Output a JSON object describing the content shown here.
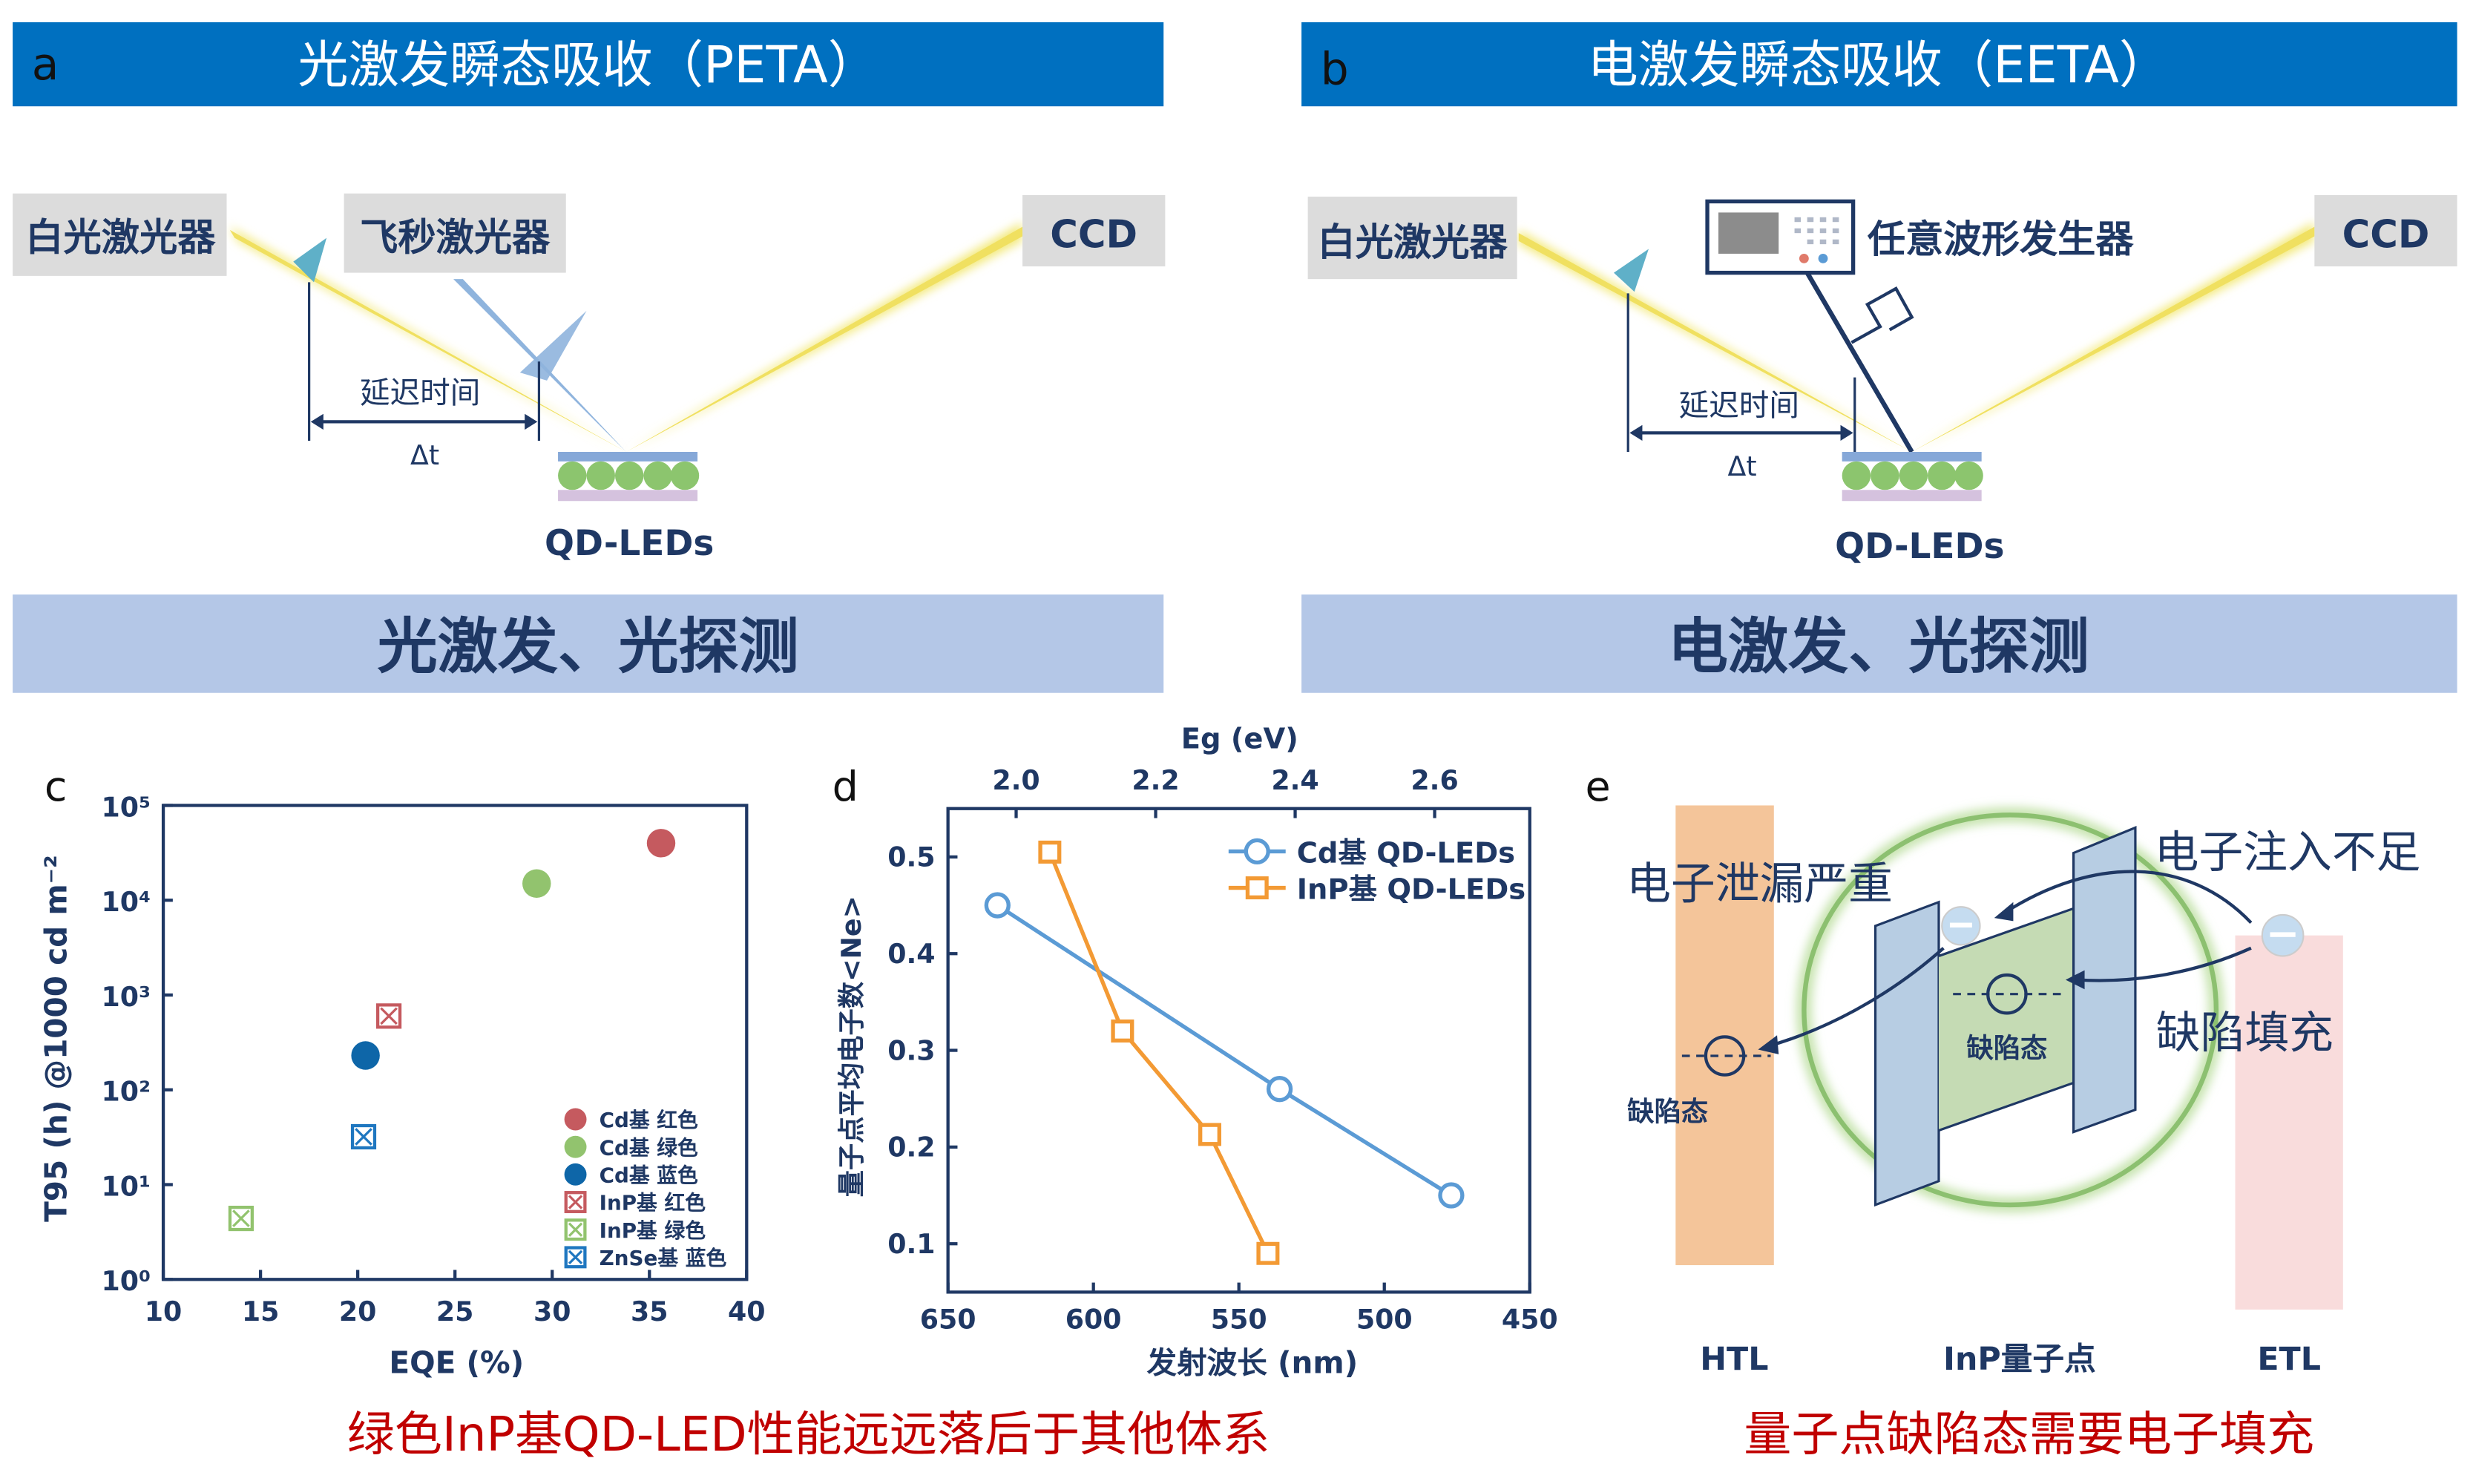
{
  "colors": {
    "header": "#0070c0",
    "banner": "#b4c7e7",
    "text": "#1f3864",
    "caption": "#c00000",
    "beam_yellow": "#f3e97a",
    "beam_blue": "#8fb4dd",
    "htl": "#f4c59a",
    "etl": "#f9dcdc",
    "well": "#c5dbb4",
    "barrier": "#b7cde3",
    "ring": "#8cc070"
  },
  "panel_a": {
    "letter": "a",
    "title": "光激发瞬态吸收（PETA）",
    "white_laser": "白光激光器",
    "fs_laser": "飞秒激光器",
    "ccd": "CCD",
    "delay": "延迟时间",
    "dt": "Δt",
    "device": "QD-LEDs",
    "banner": "光激发、光探测"
  },
  "panel_b": {
    "letter": "b",
    "title": "电激发瞬态吸收（EETA）",
    "white_laser": "白光激光器",
    "awg": "任意波形发生器",
    "ccd": "CCD",
    "delay": "延迟时间",
    "dt": "Δt",
    "device": "QD-LEDs",
    "banner": "电激发、光探测"
  },
  "panel_e": {
    "letter": "e",
    "leak": "电子泄漏严重",
    "inject": "电子注入不足",
    "fill": "缺陷填充",
    "defect_qd": "缺陷态",
    "defect_htl": "缺陷态",
    "htl": "HTL",
    "qd": "InP量子点",
    "etl": "ETL",
    "caption": "量子点缺陷态需要电子填充"
  },
  "chart_data": [
    {
      "type": "scatter",
      "letter": "c",
      "xlabel": "EQE (%)",
      "ylabel": "T95 (h) @1000 cd m⁻²",
      "xlim": [
        10,
        40
      ],
      "ylim": [
        1,
        100000
      ],
      "yscale": "log",
      "xticks": [
        "10",
        "15",
        "20",
        "25",
        "30",
        "35",
        "40"
      ],
      "yticks": [
        "10⁰",
        "10¹",
        "10²",
        "10³",
        "10⁴",
        "10⁵"
      ],
      "series": [
        {
          "name": "Cd基 红色",
          "marker": "circle",
          "color": "#c55a5f",
          "x": [
            35.6
          ],
          "y": [
            40000
          ]
        },
        {
          "name": "Cd基 绿色",
          "marker": "circle",
          "color": "#92c36e",
          "x": [
            29.2
          ],
          "y": [
            15000
          ]
        },
        {
          "name": "Cd基 蓝色",
          "marker": "circle",
          "color": "#0e66a8",
          "x": [
            20.4
          ],
          "y": [
            230
          ]
        },
        {
          "name": "InP基 红色",
          "marker": "crossed-square",
          "color": "#c55a5f",
          "x": [
            21.6
          ],
          "y": [
            600
          ]
        },
        {
          "name": "InP基 绿色",
          "marker": "crossed-square",
          "color": "#92c36e",
          "x": [
            14.0
          ],
          "y": [
            4.4
          ]
        },
        {
          "name": "ZnSe基 蓝色",
          "marker": "crossed-square",
          "color": "#1f77c0",
          "x": [
            20.3
          ],
          "y": [
            32
          ]
        }
      ],
      "legend": "bottom-right",
      "caption": "绿色InP基QD-LED性能远远落后于其他体系"
    },
    {
      "type": "line",
      "letter": "d",
      "xlabel": "发射波长 (nm)",
      "x2label": "Eg (eV)",
      "ylabel": "量子点平均电子数<Ne>",
      "xlim": [
        650,
        450
      ],
      "ylim": [
        0.05,
        0.55
      ],
      "xticks": [
        "650",
        "600",
        "550",
        "500",
        "450"
      ],
      "yticks": [
        "0.1",
        "0.2",
        "0.3",
        "0.4",
        "0.5"
      ],
      "x2ticks": [
        "2.0",
        "2.2",
        "2.4",
        "2.6"
      ],
      "series": [
        {
          "name": "Cd基 QD-LEDs",
          "marker": "circle",
          "color": "#5b9bd5",
          "x": [
            633,
            536,
            477
          ],
          "y": [
            0.45,
            0.26,
            0.15
          ]
        },
        {
          "name": "InP基 QD-LEDs",
          "marker": "square",
          "color": "#f39a34",
          "x": [
            615,
            590,
            560,
            540
          ],
          "y": [
            0.505,
            0.32,
            0.213,
            0.09
          ]
        }
      ],
      "legend": "top-right"
    }
  ]
}
